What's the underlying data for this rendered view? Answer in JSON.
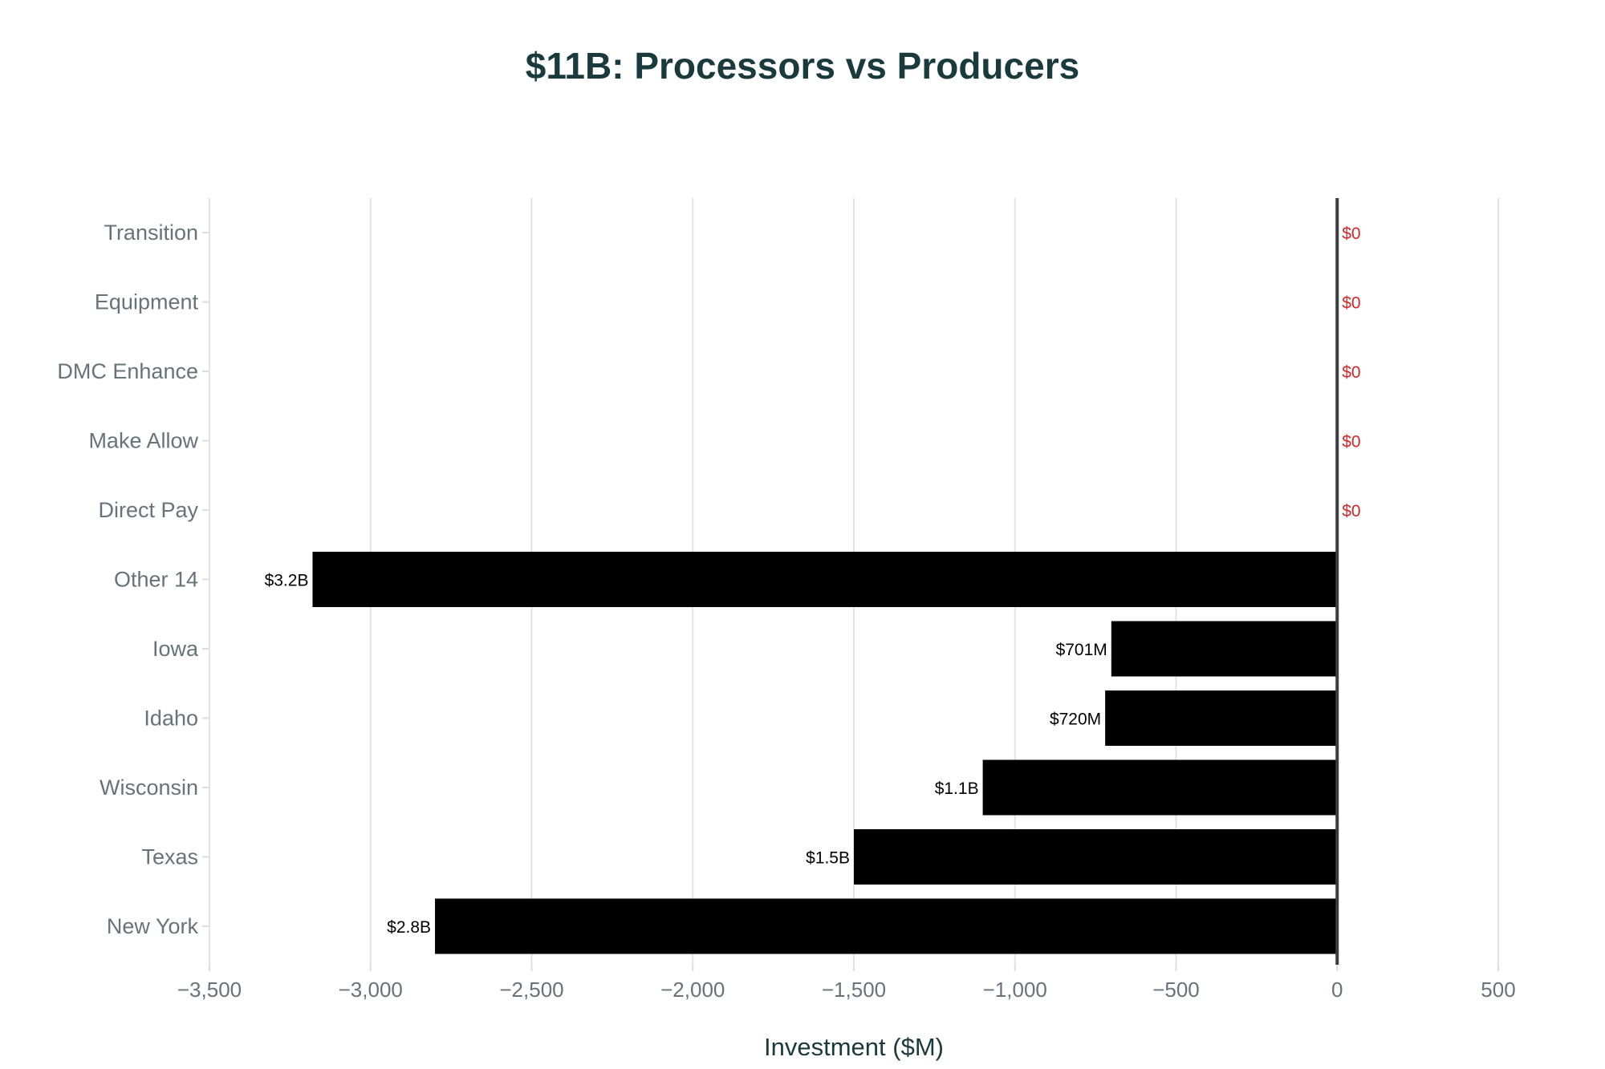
{
  "chart_data": {
    "type": "bar",
    "orientation": "horizontal",
    "title": "$11B: Processors vs Producers",
    "xlabel": "Investment ($M)",
    "ylabel": "",
    "xlim": [
      -3500,
      500
    ],
    "xticks": [
      -3500,
      -3000,
      -2500,
      -2000,
      -1500,
      -1000,
      -500,
      0,
      500
    ],
    "xtick_labels": [
      "−3,500",
      "−3,000",
      "−2,500",
      "−2,000",
      "−1,500",
      "−1,000",
      "−500",
      "0",
      "500"
    ],
    "grid": true,
    "categories": [
      "Transition",
      "Equipment",
      "DMC Enhance",
      "Make Allow",
      "Direct Pay",
      "Other 14",
      "Iowa",
      "Idaho",
      "Wisconsin",
      "Texas",
      "New York"
    ],
    "values": [
      0,
      0,
      0,
      0,
      0,
      -3180,
      -701,
      -720,
      -1100,
      -1500,
      -2800
    ],
    "data_labels": [
      "$0",
      "$0",
      "$0",
      "$0",
      "$0",
      "$3.2B",
      "$701M",
      "$720M",
      "$1.1B",
      "$1.5B",
      "$2.8B"
    ],
    "colors": {
      "bar": "#000000",
      "zero_label": "#d62728",
      "title": "#1b3a3e"
    }
  }
}
